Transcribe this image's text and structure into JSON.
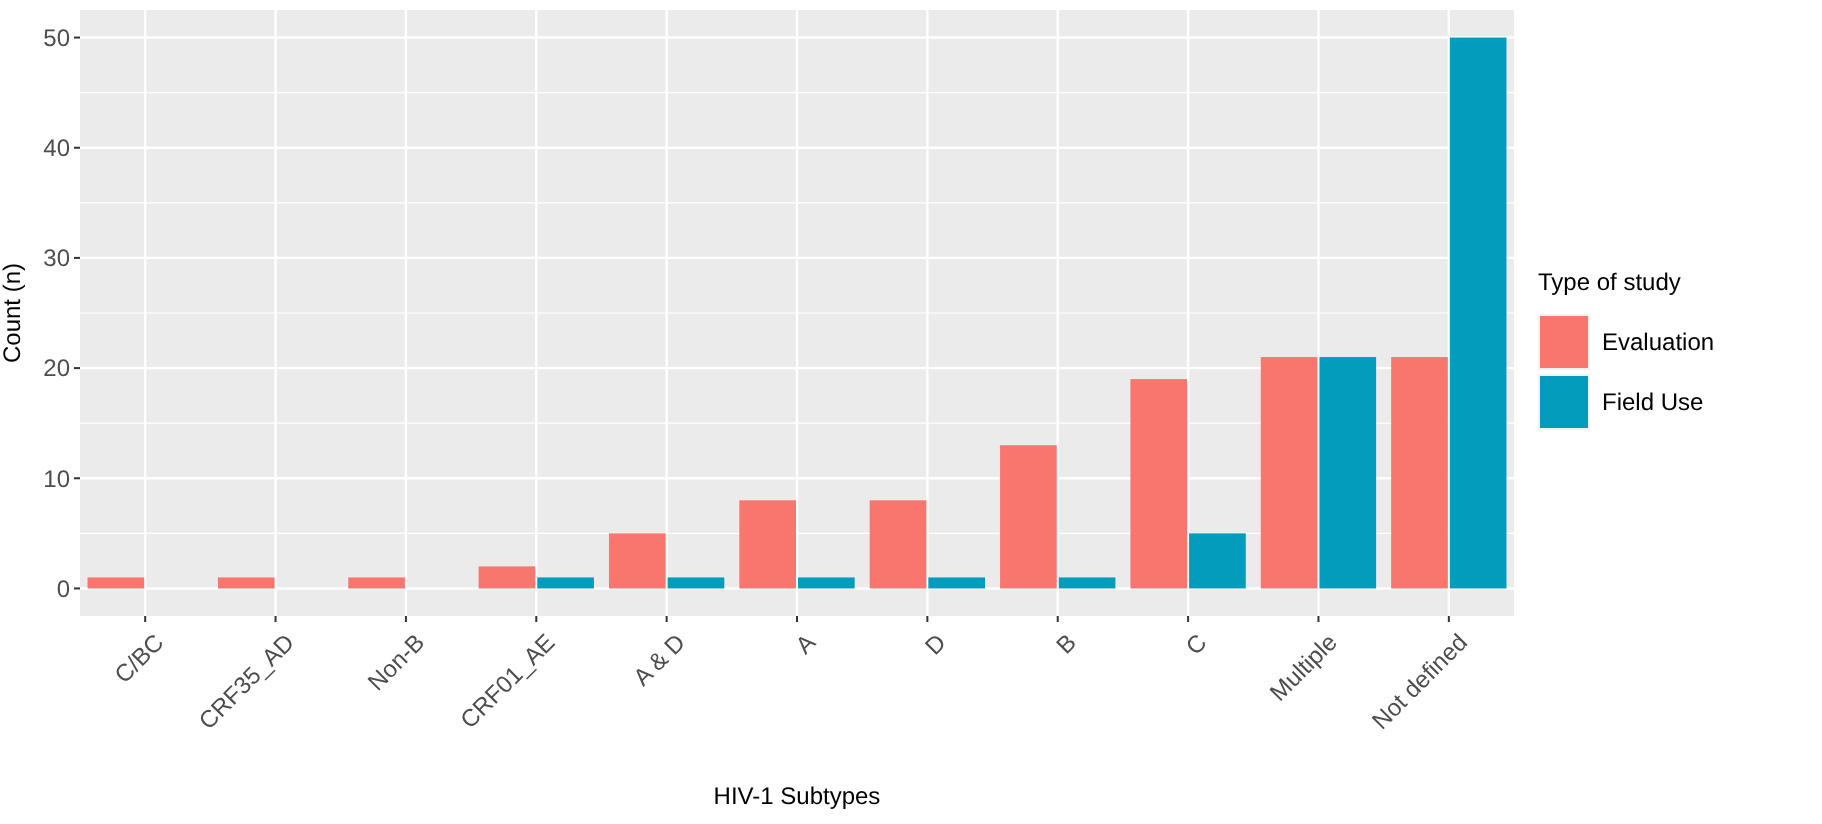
{
  "chart_data": {
    "type": "bar",
    "xlabel": "HIV-1 Subtypes",
    "ylabel": "Count (n)",
    "legend_title": "Type of study",
    "categories": [
      "C/BC",
      "CRF35_AD",
      "Non-B",
      "CRF01_AE",
      "A & D",
      "A",
      "D",
      "B",
      "C",
      "Multiple",
      "Not defined"
    ],
    "series": [
      {
        "name": "Evaluation",
        "color": "#f8766d",
        "values": [
          1,
          1,
          1,
          2,
          5,
          8,
          8,
          13,
          19,
          21,
          21
        ]
      },
      {
        "name": "Field Use",
        "color": "#049cbc",
        "values": [
          0,
          0,
          0,
          1,
          1,
          1,
          1,
          1,
          5,
          21,
          50
        ]
      }
    ],
    "ylim": [
      -2.5,
      52.5
    ],
    "yticks": [
      0,
      10,
      20,
      30,
      40,
      50
    ],
    "grid": true,
    "legend": "right"
  }
}
